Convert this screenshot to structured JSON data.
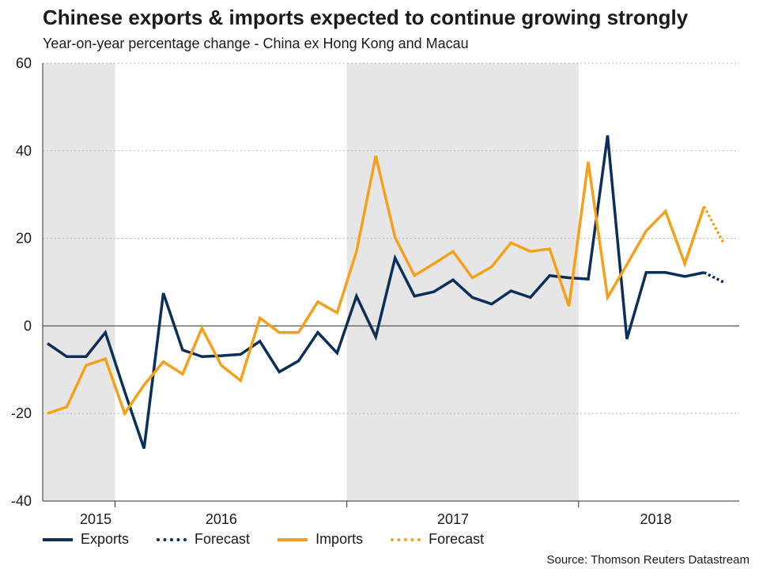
{
  "chart_data": {
    "type": "line",
    "title": "Chinese exports & imports expected to continue growing strongly",
    "subtitle": "Year-on-year percentage change - China ex Hong Kong and Macau",
    "ylim": [
      -40,
      60
    ],
    "yticks": [
      "60",
      "40",
      "20",
      "0",
      "-20",
      "-40"
    ],
    "ytick_values": [
      60,
      40,
      20,
      0,
      -20,
      -40
    ],
    "x_start": "2015-01",
    "x_end": "2018-05",
    "year_labels": [
      {
        "label": "2015",
        "month_center": 2.5
      },
      {
        "label": "2016",
        "month_center": 9
      },
      {
        "label": "2017",
        "month_center": 21
      },
      {
        "label": "2018",
        "month_center": 31.5
      }
    ],
    "year_boundaries": [
      3.5,
      15.5,
      27.5
    ],
    "shaded_spans": [
      [
        -0.5,
        3.5
      ],
      [
        15.5,
        27.5
      ]
    ],
    "series": [
      {
        "name": "Exports",
        "color": "#0b2f5b",
        "style": "solid",
        "start_index": 0,
        "values": [
          -4,
          -7,
          -7,
          -1.5,
          -15,
          -28,
          7.5,
          -5.5,
          -7,
          -6.8,
          -6.5,
          -3.5,
          -10.5,
          -8,
          -1.5,
          -6.2,
          6.8,
          -2.5,
          15.5,
          6.8,
          7.8,
          10.5,
          6.5,
          5,
          8,
          6.5,
          11.5,
          11,
          10.7,
          43.5,
          -3,
          12.2,
          12.2,
          11.3,
          12.2
        ]
      },
      {
        "name": "Forecast",
        "color": "#0b2f5b",
        "style": "dotted",
        "start_index": 34,
        "values": [
          12.2,
          10
        ]
      },
      {
        "name": "Imports",
        "color": "#f5a01a",
        "style": "solid",
        "start_index": 0,
        "values": [
          -20,
          -18.5,
          -9,
          -7.5,
          -20,
          -13.5,
          -8.2,
          -11,
          -0.5,
          -9,
          -12.5,
          1.8,
          -1.5,
          -1.5,
          5.5,
          3,
          17,
          38.8,
          20.2,
          11.5,
          14.2,
          17,
          11,
          13.5,
          19,
          17,
          17.6,
          4.5,
          37.5,
          6.5,
          14,
          21.7,
          26.2,
          14.2,
          27.3
        ]
      },
      {
        "name": "Forecast",
        "color": "#f5a01a",
        "style": "dotted",
        "start_index": 34,
        "values": [
          27.3,
          19
        ]
      }
    ],
    "legend": [
      {
        "label": "Exports",
        "color": "#0b2f5b",
        "style": "solid"
      },
      {
        "label": "Forecast",
        "color": "#0b2f5b",
        "style": "dotted"
      },
      {
        "label": "Imports",
        "color": "#f5a01a",
        "style": "solid"
      },
      {
        "label": "Forecast",
        "color": "#f5a01a",
        "style": "dotted"
      }
    ],
    "source": "Source: Thomson Reuters Datastream",
    "shade_color": "#e6e6e6",
    "grid_color": "#b3b3b3"
  }
}
